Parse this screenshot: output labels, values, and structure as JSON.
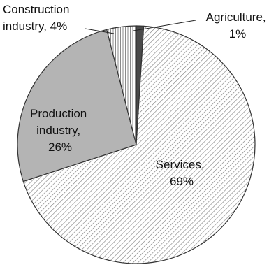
{
  "chart_data": {
    "type": "pie",
    "title": "",
    "slices": [
      {
        "name": "Agriculture",
        "value": 1,
        "label_lines": [
          "Agriculture,",
          "1%"
        ],
        "pattern": "solid-dark"
      },
      {
        "name": "Services",
        "value": 69,
        "label_lines": [
          "Services,",
          "69%"
        ],
        "pattern": "diagonal-hatch"
      },
      {
        "name": "Production industry",
        "value": 26,
        "label_lines": [
          "Production",
          "industry,",
          "26%"
        ],
        "pattern": "solid-gray"
      },
      {
        "name": "Construction industry",
        "value": 4,
        "label_lines": [
          "Construction",
          "industry, 4%"
        ],
        "pattern": "vertical-lines"
      }
    ],
    "colors": {
      "agriculture": "#4a4a4a",
      "production": "#b4b4b4",
      "hatch": "#7a7a7a",
      "vertical": "#8a8a8a",
      "outline": "#333333"
    }
  }
}
